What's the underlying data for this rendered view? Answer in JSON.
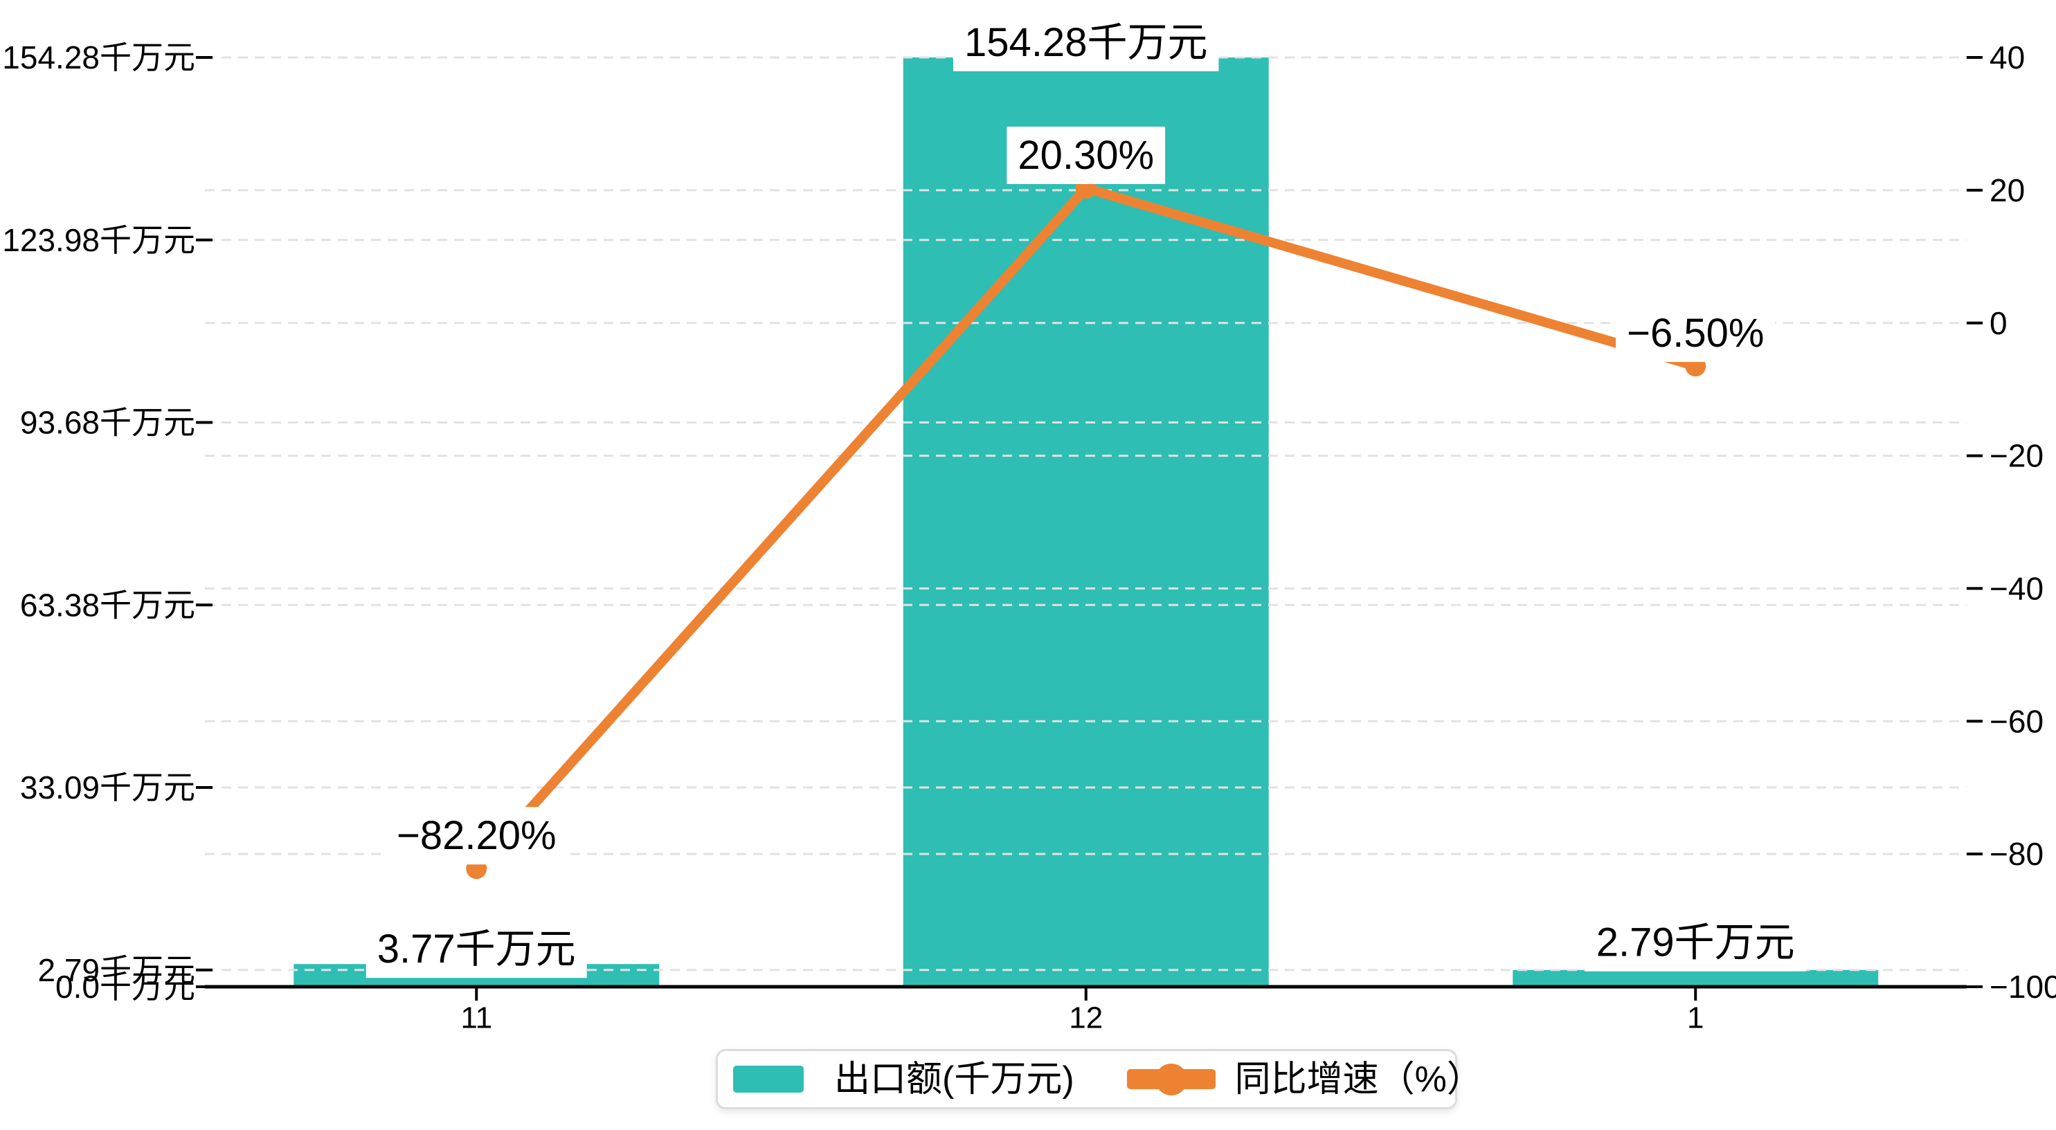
{
  "chart_data": {
    "type": "bar",
    "subtype": "dual-axis bar+line",
    "title": "",
    "categories": [
      "11",
      "12",
      "1"
    ],
    "series": [
      {
        "name": "出口额(千万元)",
        "type": "bar",
        "axis": "left",
        "color": "#2FBEB3",
        "values": [
          3.77,
          154.28,
          2.79
        ],
        "data_labels": [
          "3.77千万元",
          "154.28千万元",
          "2.79千万元"
        ]
      },
      {
        "name": "同比增速（%）",
        "type": "line",
        "axis": "right",
        "color": "#EE8233",
        "values": [
          -82.2,
          20.3,
          -6.5
        ],
        "data_labels": [
          "−82.20%",
          "20.30%",
          "−6.50%"
        ]
      }
    ],
    "left_axis": {
      "min": 0,
      "max": 154.28,
      "ticks": [
        {
          "value": 154.28,
          "label": "154.28千万元"
        },
        {
          "value": 123.98,
          "label": "123.98千万元"
        },
        {
          "value": 93.68,
          "label": "93.68千万元"
        },
        {
          "value": 63.38,
          "label": "63.38千万元"
        },
        {
          "value": 33.09,
          "label": "33.09千万元"
        },
        {
          "value": 2.79,
          "label": "2.79千万元"
        },
        {
          "value": 0,
          "label": "0.0千万元"
        }
      ]
    },
    "right_axis": {
      "min": -100,
      "max": 40,
      "ticks": [
        {
          "value": 40,
          "label": "40"
        },
        {
          "value": 20,
          "label": "20"
        },
        {
          "value": 0,
          "label": "0"
        },
        {
          "value": -20,
          "label": "−20"
        },
        {
          "value": -40,
          "label": "−40"
        },
        {
          "value": -60,
          "label": "−60"
        },
        {
          "value": -80,
          "label": "−80"
        },
        {
          "value": -100,
          "label": "−100"
        }
      ]
    },
    "grid": "horizontal dashed gridlines for both axes",
    "legend_position": "bottom-center"
  },
  "legend": {
    "items": [
      {
        "label": "出口额(千万元)",
        "color": "#2FBEB3",
        "icon": "rect"
      },
      {
        "label": "同比增速（%）",
        "color": "#EE8233",
        "icon": "line-dot"
      }
    ]
  },
  "colors": {
    "bar": "#2FBEB3",
    "line": "#EE8233",
    "gridline": "#E2E2E2",
    "axis": "#000000",
    "label_bg": "#FFFFFF",
    "legend_border": "#DCDCDC"
  }
}
